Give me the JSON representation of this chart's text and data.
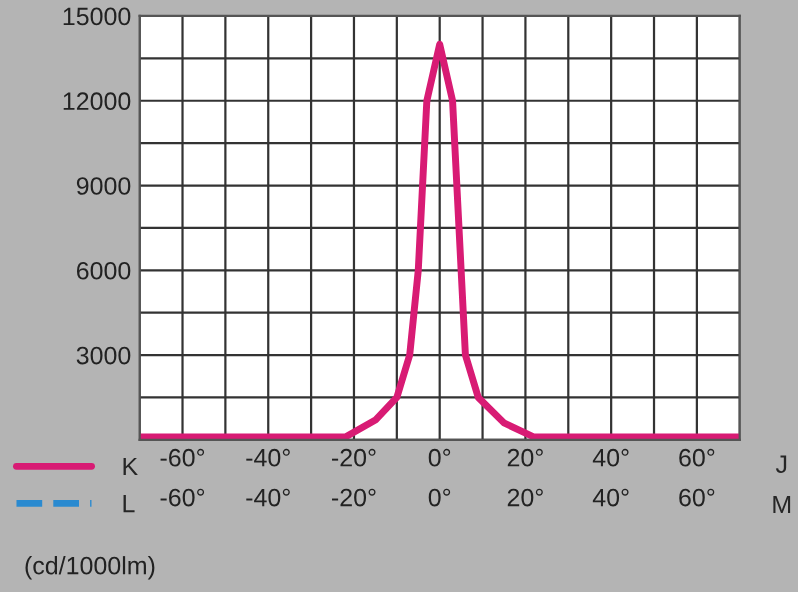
{
  "chart_data": {
    "type": "line",
    "x": [
      -70,
      -30,
      -22,
      -15,
      -10,
      -7,
      -5,
      -3,
      0,
      3,
      5,
      6,
      9,
      15,
      22,
      30,
      70
    ],
    "series": [
      {
        "name": "K",
        "color": "#d81b74",
        "line_style": "solid",
        "values": [
          100,
          100,
          100,
          700,
          1500,
          3000,
          6000,
          12000,
          14000,
          12000,
          6000,
          3000,
          1500,
          600,
          100,
          100,
          100
        ]
      },
      {
        "name": "L",
        "color": "#2a8ad0",
        "line_style": "dashed",
        "values": [
          null,
          null,
          null,
          null,
          null,
          null,
          null,
          null,
          null,
          null,
          null,
          null,
          null,
          null,
          null,
          null,
          null
        ]
      }
    ],
    "xlim": [
      -70,
      70
    ],
    "xticks": [
      {
        "value": -70,
        "label": null
      },
      {
        "value": -60,
        "label": "-60°"
      },
      {
        "value": -50,
        "label": null
      },
      {
        "value": -40,
        "label": "-40°"
      },
      {
        "value": -30,
        "label": null
      },
      {
        "value": -20,
        "label": "-20°"
      },
      {
        "value": -10,
        "label": null
      },
      {
        "value": 0,
        "label": "0°"
      },
      {
        "value": 10,
        "label": null
      },
      {
        "value": 20,
        "label": "20°"
      },
      {
        "value": 30,
        "label": null
      },
      {
        "value": 40,
        "label": "40°"
      },
      {
        "value": 50,
        "label": null
      },
      {
        "value": 60,
        "label": "60°"
      },
      {
        "value": 70,
        "label": null
      }
    ],
    "x2lim": [
      -70,
      70
    ],
    "x2ticks": [
      {
        "value": -60,
        "label": "-60°"
      },
      {
        "value": -40,
        "label": "-40°"
      },
      {
        "value": -20,
        "label": "-20°"
      },
      {
        "value": 0,
        "label": "0°"
      },
      {
        "value": 20,
        "label": "20°"
      },
      {
        "value": 40,
        "label": "40°"
      },
      {
        "value": 60,
        "label": "60°"
      }
    ],
    "xlabel": "J",
    "x2label": "M",
    "ylim": [
      0,
      15000
    ],
    "yticks": [
      {
        "value": 0,
        "label": null
      },
      {
        "value": 1500,
        "label": null
      },
      3000,
      {
        "value": 4500,
        "label": null
      },
      6000,
      {
        "value": 7500,
        "label": null
      },
      9000,
      {
        "value": 10500,
        "label": null
      },
      12000,
      {
        "value": 13500,
        "label": null
      },
      15000
    ],
    "grid": true,
    "legend": "bottom left",
    "marker": "none",
    "annotations": [
      "(cd/1000lm)"
    ]
  }
}
